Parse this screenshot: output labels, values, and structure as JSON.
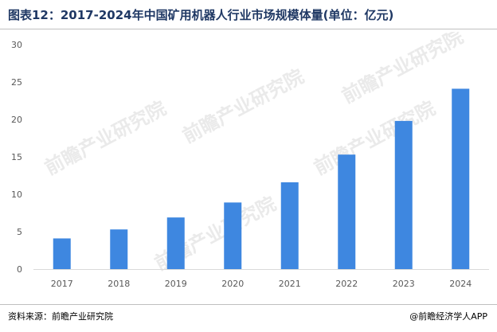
{
  "title": "图表12：2017-2024年中国矿用机器人行业市场规模体量(单位：亿元)",
  "source": "资料来源：前瞻产业研究院",
  "brand": "@前瞻经济学人APP",
  "watermark": "前瞻产业研究院",
  "colors": {
    "bar": "#3e87e0",
    "title": "#1f3864",
    "axis": "#d9d9d9"
  },
  "chart_data": {
    "type": "bar",
    "categories": [
      "2017",
      "2018",
      "2019",
      "2020",
      "2021",
      "2022",
      "2023",
      "2024"
    ],
    "values": [
      4.1,
      5.3,
      6.9,
      8.9,
      11.6,
      15.3,
      19.8,
      24.1
    ],
    "title": "图表12：2017-2024年中国矿用机器人行业市场规模体量(单位：亿元)",
    "xlabel": "",
    "ylabel": "",
    "ylim": [
      0,
      30
    ],
    "yticks": [
      0,
      5,
      10,
      15,
      20,
      25,
      30
    ],
    "grid": false,
    "legend": "none"
  }
}
